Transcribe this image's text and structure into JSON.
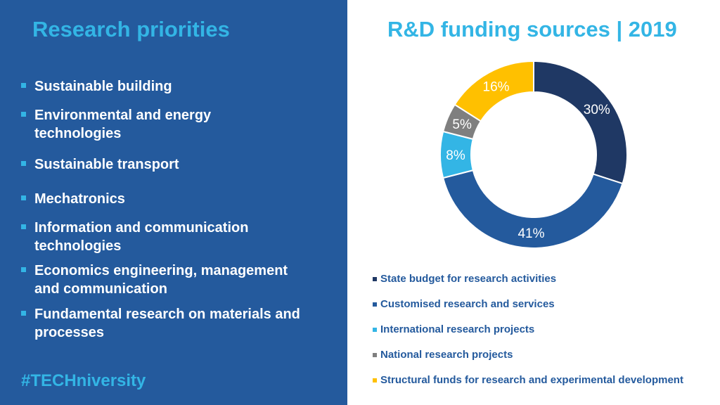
{
  "left": {
    "title": "Research priorities",
    "items": [
      {
        "label": "Sustainable building"
      },
      {
        "label": "Environmental and energy technologies"
      },
      {
        "label": "Sustainable transport"
      },
      {
        "label": "Mechatronics"
      },
      {
        "label": "Information and communication technologies"
      },
      {
        "label": "Economics engineering, management and communication"
      },
      {
        "label": "Fundamental research on materials and processes"
      }
    ],
    "hashtag": "#TECHniversity"
  },
  "chart_data": {
    "type": "pie",
    "style": "donut",
    "title": "R&D funding sources | 2019",
    "legend_position": "bottom",
    "slices": [
      {
        "label": "State budget for research activities",
        "value": 30,
        "value_label": "30%",
        "color": "#1f3864"
      },
      {
        "label": "Customised research and services",
        "value": 41,
        "value_label": "41%",
        "color": "#245a9d"
      },
      {
        "label": "International research projects",
        "value": 8,
        "value_label": "8%",
        "color": "#33b5e5"
      },
      {
        "label": "National research projects",
        "value": 5,
        "value_label": "5%",
        "color": "#7f7f7f"
      },
      {
        "label": "Structural funds for research and experimental development",
        "value": 16,
        "value_label": "16%",
        "color": "#ffc000"
      }
    ]
  },
  "colors": {
    "panel": "#245a9d",
    "accent": "#33b5e5",
    "text_light": "#ffffff"
  }
}
